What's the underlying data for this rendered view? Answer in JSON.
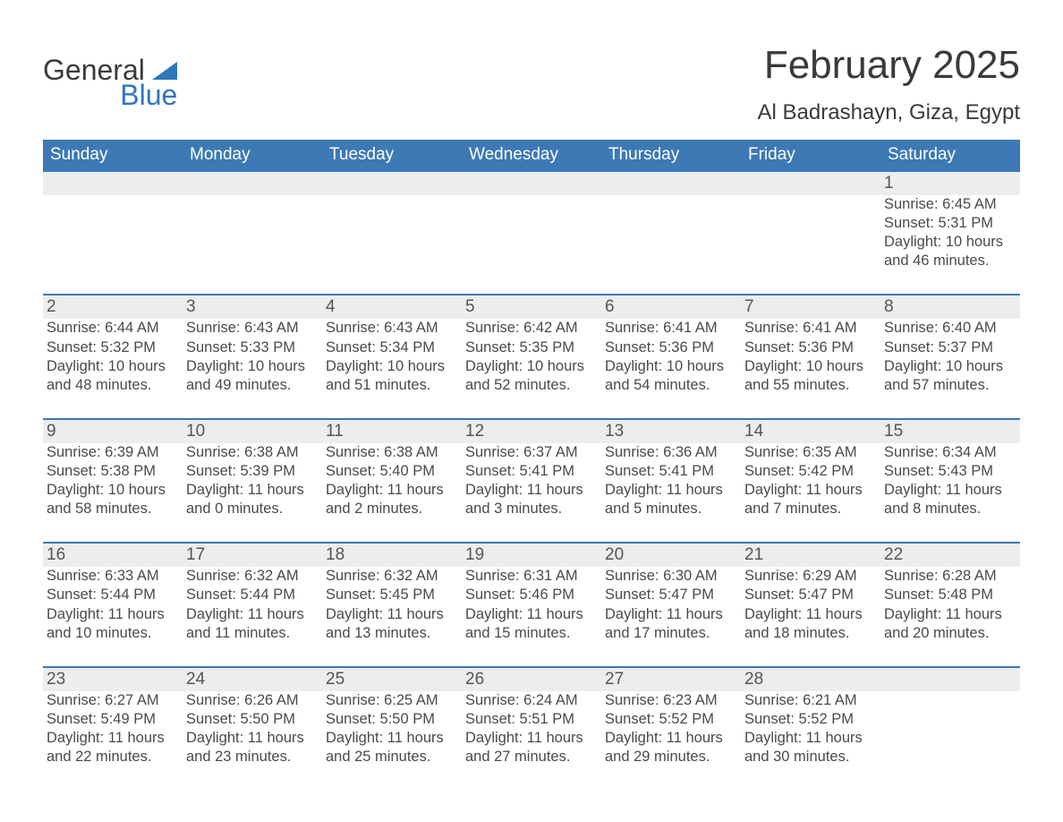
{
  "brand": {
    "textA": "General",
    "textB": "Blue",
    "accent": "#2f77bb"
  },
  "header": {
    "title": "February 2025",
    "location": "Al Badrashayn, Giza, Egypt"
  },
  "colors": {
    "header_bg": "#3c79b5",
    "header_text": "#ffffff",
    "band_bg": "#ededed",
    "rule": "#3c79b5",
    "text": "#4a4a4a"
  },
  "dayNames": [
    "Sunday",
    "Monday",
    "Tuesday",
    "Wednesday",
    "Thursday",
    "Friday",
    "Saturday"
  ],
  "weeks": [
    [
      null,
      null,
      null,
      null,
      null,
      null,
      {
        "n": "1",
        "sunrise": "6:45 AM",
        "sunset": "5:31 PM",
        "daylight": "10 hours and 46 minutes."
      }
    ],
    [
      {
        "n": "2",
        "sunrise": "6:44 AM",
        "sunset": "5:32 PM",
        "daylight": "10 hours and 48 minutes."
      },
      {
        "n": "3",
        "sunrise": "6:43 AM",
        "sunset": "5:33 PM",
        "daylight": "10 hours and 49 minutes."
      },
      {
        "n": "4",
        "sunrise": "6:43 AM",
        "sunset": "5:34 PM",
        "daylight": "10 hours and 51 minutes."
      },
      {
        "n": "5",
        "sunrise": "6:42 AM",
        "sunset": "5:35 PM",
        "daylight": "10 hours and 52 minutes."
      },
      {
        "n": "6",
        "sunrise": "6:41 AM",
        "sunset": "5:36 PM",
        "daylight": "10 hours and 54 minutes."
      },
      {
        "n": "7",
        "sunrise": "6:41 AM",
        "sunset": "5:36 PM",
        "daylight": "10 hours and 55 minutes."
      },
      {
        "n": "8",
        "sunrise": "6:40 AM",
        "sunset": "5:37 PM",
        "daylight": "10 hours and 57 minutes."
      }
    ],
    [
      {
        "n": "9",
        "sunrise": "6:39 AM",
        "sunset": "5:38 PM",
        "daylight": "10 hours and 58 minutes."
      },
      {
        "n": "10",
        "sunrise": "6:38 AM",
        "sunset": "5:39 PM",
        "daylight": "11 hours and 0 minutes."
      },
      {
        "n": "11",
        "sunrise": "6:38 AM",
        "sunset": "5:40 PM",
        "daylight": "11 hours and 2 minutes."
      },
      {
        "n": "12",
        "sunrise": "6:37 AM",
        "sunset": "5:41 PM",
        "daylight": "11 hours and 3 minutes."
      },
      {
        "n": "13",
        "sunrise": "6:36 AM",
        "sunset": "5:41 PM",
        "daylight": "11 hours and 5 minutes."
      },
      {
        "n": "14",
        "sunrise": "6:35 AM",
        "sunset": "5:42 PM",
        "daylight": "11 hours and 7 minutes."
      },
      {
        "n": "15",
        "sunrise": "6:34 AM",
        "sunset": "5:43 PM",
        "daylight": "11 hours and 8 minutes."
      }
    ],
    [
      {
        "n": "16",
        "sunrise": "6:33 AM",
        "sunset": "5:44 PM",
        "daylight": "11 hours and 10 minutes."
      },
      {
        "n": "17",
        "sunrise": "6:32 AM",
        "sunset": "5:44 PM",
        "daylight": "11 hours and 11 minutes."
      },
      {
        "n": "18",
        "sunrise": "6:32 AM",
        "sunset": "5:45 PM",
        "daylight": "11 hours and 13 minutes."
      },
      {
        "n": "19",
        "sunrise": "6:31 AM",
        "sunset": "5:46 PM",
        "daylight": "11 hours and 15 minutes."
      },
      {
        "n": "20",
        "sunrise": "6:30 AM",
        "sunset": "5:47 PM",
        "daylight": "11 hours and 17 minutes."
      },
      {
        "n": "21",
        "sunrise": "6:29 AM",
        "sunset": "5:47 PM",
        "daylight": "11 hours and 18 minutes."
      },
      {
        "n": "22",
        "sunrise": "6:28 AM",
        "sunset": "5:48 PM",
        "daylight": "11 hours and 20 minutes."
      }
    ],
    [
      {
        "n": "23",
        "sunrise": "6:27 AM",
        "sunset": "5:49 PM",
        "daylight": "11 hours and 22 minutes."
      },
      {
        "n": "24",
        "sunrise": "6:26 AM",
        "sunset": "5:50 PM",
        "daylight": "11 hours and 23 minutes."
      },
      {
        "n": "25",
        "sunrise": "6:25 AM",
        "sunset": "5:50 PM",
        "daylight": "11 hours and 25 minutes."
      },
      {
        "n": "26",
        "sunrise": "6:24 AM",
        "sunset": "5:51 PM",
        "daylight": "11 hours and 27 minutes."
      },
      {
        "n": "27",
        "sunrise": "6:23 AM",
        "sunset": "5:52 PM",
        "daylight": "11 hours and 29 minutes."
      },
      {
        "n": "28",
        "sunrise": "6:21 AM",
        "sunset": "5:52 PM",
        "daylight": "11 hours and 30 minutes."
      },
      null
    ]
  ],
  "labels": {
    "sunrise": "Sunrise: ",
    "sunset": "Sunset: ",
    "daylight": "Daylight: "
  }
}
